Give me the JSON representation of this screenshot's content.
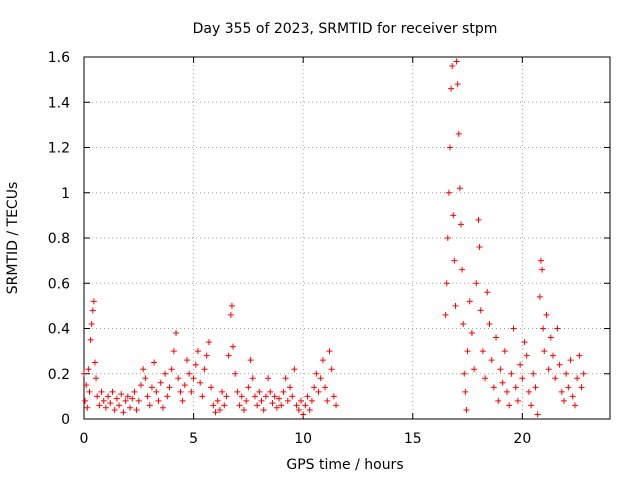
{
  "chart_data": {
    "type": "scatter",
    "title": "Day 355 of 2023, SRMTID for receiver stpm",
    "xlabel": "GPS time / hours",
    "ylabel": "SRMTID / TECUs",
    "xlim": [
      0,
      24
    ],
    "ylim": [
      0,
      1.6
    ],
    "x_ticks": [
      0,
      5,
      10,
      15,
      20
    ],
    "x_tick_labels": [
      "0",
      "5",
      "10",
      "15",
      "20"
    ],
    "y_ticks": [
      0,
      0.2,
      0.4,
      0.6,
      0.8,
      1.0,
      1.2,
      1.4,
      1.6
    ],
    "y_tick_labels": [
      "0",
      "0.2",
      "0.4",
      "0.6",
      "0.8",
      "1",
      "1.2",
      "1.4",
      "1.6"
    ],
    "grid": true,
    "marker": "+",
    "color": "#ff0000",
    "series": [
      {
        "name": "SRMTID",
        "points": [
          [
            0.0,
            0.2
          ],
          [
            0.05,
            0.08
          ],
          [
            0.1,
            0.15
          ],
          [
            0.15,
            0.05
          ],
          [
            0.2,
            0.22
          ],
          [
            0.25,
            0.12
          ],
          [
            0.3,
            0.35
          ],
          [
            0.35,
            0.42
          ],
          [
            0.4,
            0.48
          ],
          [
            0.45,
            0.52
          ],
          [
            0.5,
            0.25
          ],
          [
            0.55,
            0.18
          ],
          [
            0.6,
            0.1
          ],
          [
            0.7,
            0.06
          ],
          [
            0.8,
            0.12
          ],
          [
            0.9,
            0.08
          ],
          [
            1.0,
            0.05
          ],
          [
            1.1,
            0.1
          ],
          [
            1.2,
            0.07
          ],
          [
            1.3,
            0.12
          ],
          [
            1.4,
            0.04
          ],
          [
            1.5,
            0.09
          ],
          [
            1.6,
            0.06
          ],
          [
            1.7,
            0.11
          ],
          [
            1.8,
            0.03
          ],
          [
            1.9,
            0.08
          ],
          [
            2.0,
            0.1
          ],
          [
            2.1,
            0.05
          ],
          [
            2.2,
            0.09
          ],
          [
            2.3,
            0.12
          ],
          [
            2.4,
            0.04
          ],
          [
            2.5,
            0.08
          ],
          [
            2.6,
            0.15
          ],
          [
            2.7,
            0.22
          ],
          [
            2.8,
            0.18
          ],
          [
            2.9,
            0.1
          ],
          [
            3.0,
            0.06
          ],
          [
            3.1,
            0.14
          ],
          [
            3.2,
            0.25
          ],
          [
            3.3,
            0.12
          ],
          [
            3.4,
            0.08
          ],
          [
            3.5,
            0.16
          ],
          [
            3.6,
            0.05
          ],
          [
            3.7,
            0.2
          ],
          [
            3.8,
            0.1
          ],
          [
            3.9,
            0.14
          ],
          [
            4.0,
            0.22
          ],
          [
            4.1,
            0.3
          ],
          [
            4.2,
            0.38
          ],
          [
            4.3,
            0.18
          ],
          [
            4.4,
            0.12
          ],
          [
            4.5,
            0.08
          ],
          [
            4.6,
            0.15
          ],
          [
            4.7,
            0.26
          ],
          [
            4.8,
            0.2
          ],
          [
            4.9,
            0.12
          ],
          [
            5.0,
            0.18
          ],
          [
            5.1,
            0.24
          ],
          [
            5.2,
            0.3
          ],
          [
            5.3,
            0.16
          ],
          [
            5.4,
            0.1
          ],
          [
            5.5,
            0.22
          ],
          [
            5.6,
            0.28
          ],
          [
            5.7,
            0.34
          ],
          [
            5.8,
            0.14
          ],
          [
            5.9,
            0.06
          ],
          [
            6.0,
            0.03
          ],
          [
            6.1,
            0.08
          ],
          [
            6.2,
            0.04
          ],
          [
            6.3,
            0.12
          ],
          [
            6.4,
            0.06
          ],
          [
            6.5,
            0.1
          ],
          [
            6.6,
            0.28
          ],
          [
            6.7,
            0.46
          ],
          [
            6.75,
            0.5
          ],
          [
            6.8,
            0.32
          ],
          [
            6.9,
            0.2
          ],
          [
            7.0,
            0.12
          ],
          [
            7.1,
            0.06
          ],
          [
            7.2,
            0.1
          ],
          [
            7.3,
            0.04
          ],
          [
            7.4,
            0.08
          ],
          [
            7.5,
            0.14
          ],
          [
            7.6,
            0.26
          ],
          [
            7.7,
            0.18
          ],
          [
            7.8,
            0.1
          ],
          [
            7.9,
            0.06
          ],
          [
            8.0,
            0.12
          ],
          [
            8.1,
            0.08
          ],
          [
            8.2,
            0.04
          ],
          [
            8.3,
            0.1
          ],
          [
            8.4,
            0.18
          ],
          [
            8.5,
            0.12
          ],
          [
            8.6,
            0.07
          ],
          [
            8.7,
            0.1
          ],
          [
            8.8,
            0.05
          ],
          [
            8.9,
            0.09
          ],
          [
            9.0,
            0.06
          ],
          [
            9.1,
            0.12
          ],
          [
            9.2,
            0.18
          ],
          [
            9.3,
            0.08
          ],
          [
            9.4,
            0.14
          ],
          [
            9.5,
            0.1
          ],
          [
            9.6,
            0.22
          ],
          [
            9.7,
            0.06
          ],
          [
            9.8,
            0.04
          ],
          [
            9.9,
            0.08
          ],
          [
            10.0,
            0.02
          ],
          [
            10.1,
            0.06
          ],
          [
            10.2,
            0.1
          ],
          [
            10.3,
            0.04
          ],
          [
            10.4,
            0.08
          ],
          [
            10.5,
            0.14
          ],
          [
            10.6,
            0.2
          ],
          [
            10.7,
            0.12
          ],
          [
            10.8,
            0.18
          ],
          [
            10.9,
            0.26
          ],
          [
            11.0,
            0.14
          ],
          [
            11.1,
            0.08
          ],
          [
            11.2,
            0.3
          ],
          [
            11.3,
            0.22
          ],
          [
            11.4,
            0.1
          ],
          [
            11.5,
            0.06
          ],
          [
            16.5,
            0.46
          ],
          [
            16.55,
            0.6
          ],
          [
            16.6,
            0.8
          ],
          [
            16.65,
            1.0
          ],
          [
            16.7,
            1.2
          ],
          [
            16.75,
            1.46
          ],
          [
            16.8,
            1.56
          ],
          [
            16.85,
            0.9
          ],
          [
            16.9,
            0.7
          ],
          [
            16.95,
            0.5
          ],
          [
            17.0,
            1.58
          ],
          [
            17.05,
            1.48
          ],
          [
            17.1,
            1.26
          ],
          [
            17.15,
            1.02
          ],
          [
            17.2,
            0.86
          ],
          [
            17.25,
            0.66
          ],
          [
            17.3,
            0.42
          ],
          [
            17.35,
            0.2
          ],
          [
            17.4,
            0.12
          ],
          [
            17.45,
            0.04
          ],
          [
            17.5,
            0.3
          ],
          [
            17.6,
            0.52
          ],
          [
            17.7,
            0.38
          ],
          [
            17.8,
            0.22
          ],
          [
            17.9,
            0.6
          ],
          [
            18.0,
            0.88
          ],
          [
            18.05,
            0.76
          ],
          [
            18.1,
            0.48
          ],
          [
            18.2,
            0.3
          ],
          [
            18.3,
            0.18
          ],
          [
            18.4,
            0.56
          ],
          [
            18.5,
            0.42
          ],
          [
            18.6,
            0.26
          ],
          [
            18.7,
            0.14
          ],
          [
            18.8,
            0.36
          ],
          [
            18.9,
            0.08
          ],
          [
            19.0,
            0.22
          ],
          [
            19.1,
            0.16
          ],
          [
            19.2,
            0.3
          ],
          [
            19.3,
            0.12
          ],
          [
            19.4,
            0.06
          ],
          [
            19.5,
            0.2
          ],
          [
            19.6,
            0.4
          ],
          [
            19.7,
            0.14
          ],
          [
            19.8,
            0.08
          ],
          [
            19.9,
            0.24
          ],
          [
            20.0,
            0.18
          ],
          [
            20.1,
            0.34
          ],
          [
            20.2,
            0.28
          ],
          [
            20.3,
            0.12
          ],
          [
            20.4,
            0.06
          ],
          [
            20.5,
            0.2
          ],
          [
            20.6,
            0.14
          ],
          [
            20.7,
            0.02
          ],
          [
            20.8,
            0.54
          ],
          [
            20.85,
            0.7
          ],
          [
            20.9,
            0.66
          ],
          [
            20.95,
            0.4
          ],
          [
            21.0,
            0.3
          ],
          [
            21.1,
            0.46
          ],
          [
            21.2,
            0.22
          ],
          [
            21.3,
            0.36
          ],
          [
            21.4,
            0.28
          ],
          [
            21.5,
            0.18
          ],
          [
            21.6,
            0.4
          ],
          [
            21.7,
            0.24
          ],
          [
            21.8,
            0.12
          ],
          [
            21.9,
            0.08
          ],
          [
            22.0,
            0.2
          ],
          [
            22.1,
            0.14
          ],
          [
            22.2,
            0.26
          ],
          [
            22.3,
            0.1
          ],
          [
            22.4,
            0.06
          ],
          [
            22.5,
            0.18
          ],
          [
            22.6,
            0.28
          ],
          [
            22.7,
            0.14
          ],
          [
            22.8,
            0.2
          ]
        ]
      }
    ]
  }
}
